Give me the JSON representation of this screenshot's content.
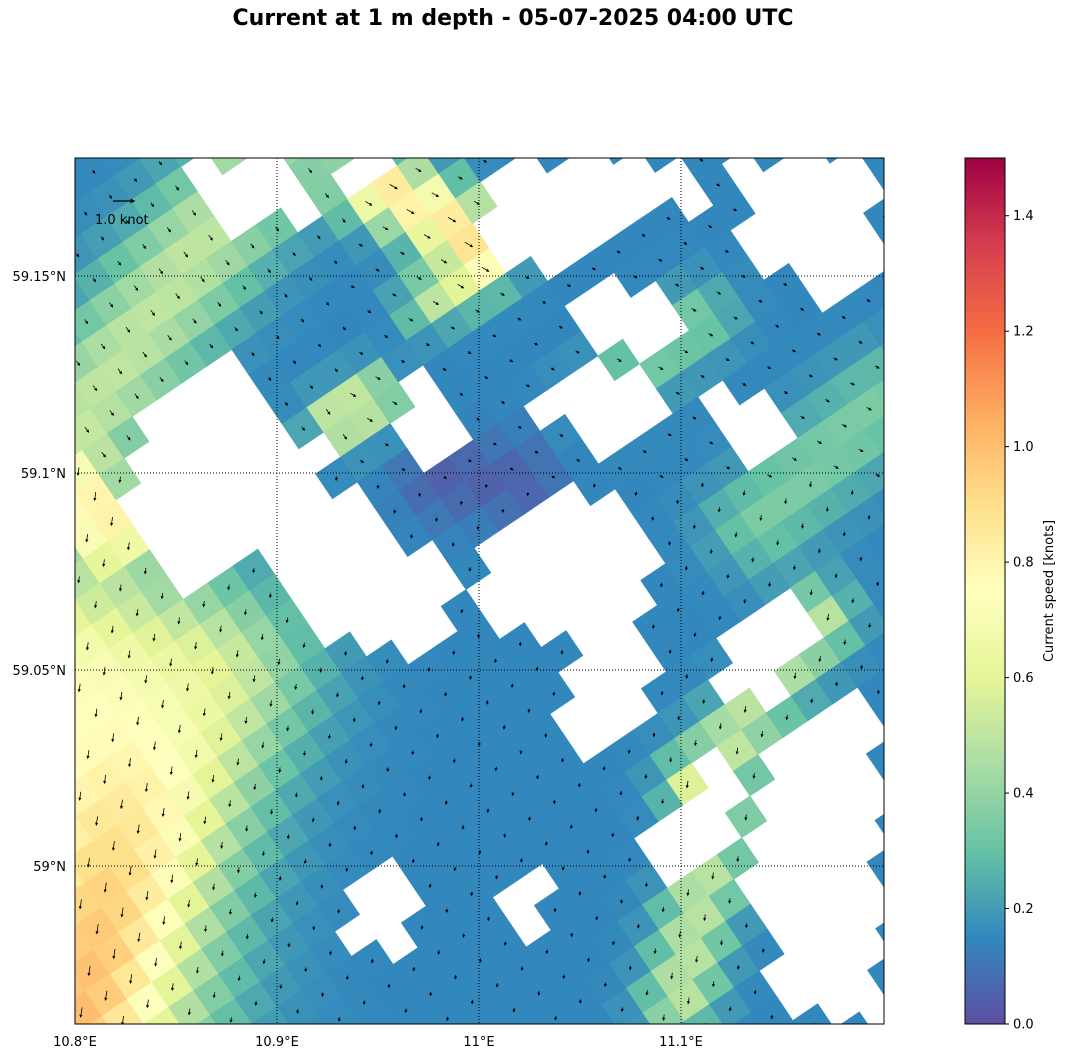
{
  "title": "Current at 1 m depth - 05-07-2025 04:00 UTC",
  "map": {
    "lon_range": [
      10.8,
      11.2
    ],
    "lat_range": [
      58.96,
      59.18
    ],
    "lon_ticks": [
      {
        "v": 10.8,
        "label": "10.8°E"
      },
      {
        "v": 10.9,
        "label": "10.9°E"
      },
      {
        "v": 11.0,
        "label": "11°E"
      },
      {
        "v": 11.1,
        "label": "11.1°E"
      }
    ],
    "lat_ticks": [
      {
        "v": 59.15,
        "label": "59.15°N"
      },
      {
        "v": 59.1,
        "label": "59.1°N"
      },
      {
        "v": 59.05,
        "label": "59.05°N"
      },
      {
        "v": 59.0,
        "label": "59°N"
      }
    ],
    "quiver_key_label": "1.0 knot",
    "gridlines": "dotted"
  },
  "colorbar": {
    "label": "Current speed [knots]",
    "colormap": "Spectral_r",
    "range": [
      0,
      1.5
    ],
    "ticks": [
      {
        "v": 0.0,
        "label": "0.0"
      },
      {
        "v": 0.2,
        "label": "0.2"
      },
      {
        "v": 0.4,
        "label": "0.4"
      },
      {
        "v": 0.6,
        "label": "0.6"
      },
      {
        "v": 0.8,
        "label": "0.8"
      },
      {
        "v": 1.0,
        "label": "1.0"
      },
      {
        "v": 1.2,
        "label": "1.2"
      },
      {
        "v": 1.4,
        "label": "1.4"
      }
    ]
  }
}
